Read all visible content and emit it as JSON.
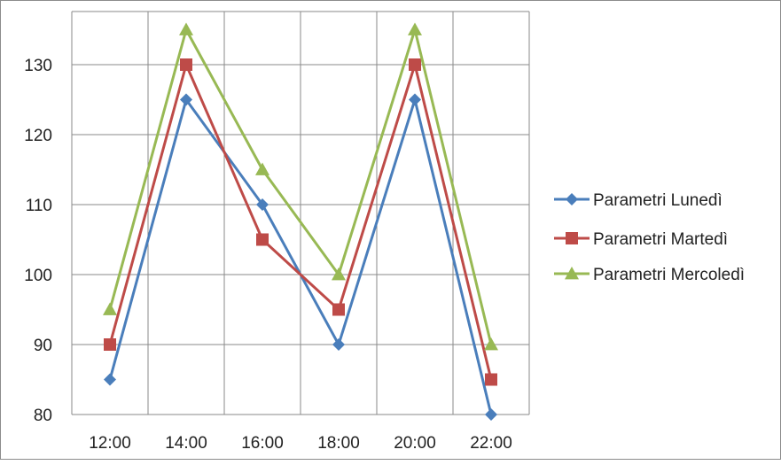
{
  "chart_data": {
    "type": "line",
    "title": "",
    "xlabel": "",
    "ylabel": "",
    "categories": [
      "12:00",
      "14:00",
      "16:00",
      "18:00",
      "20:00",
      "22:00"
    ],
    "ylim": [
      80,
      130
    ],
    "y_ticks": [
      "80",
      "90",
      "100",
      "110",
      "120",
      "130"
    ],
    "grid": true,
    "legend_position": "right",
    "series": [
      {
        "name": "Parametri Lunedì",
        "color": "#4a7ebb",
        "marker": "diamond",
        "values": [
          85,
          125,
          110,
          90,
          125,
          80
        ]
      },
      {
        "name": "Parametri Martedì",
        "color": "#be4b48",
        "marker": "square",
        "values": [
          90,
          130,
          105,
          95,
          130,
          85
        ]
      },
      {
        "name": "Parametri Mercoledì",
        "color": "#98b954",
        "marker": "triangle",
        "values": [
          95,
          135,
          115,
          100,
          135,
          90
        ]
      }
    ]
  }
}
